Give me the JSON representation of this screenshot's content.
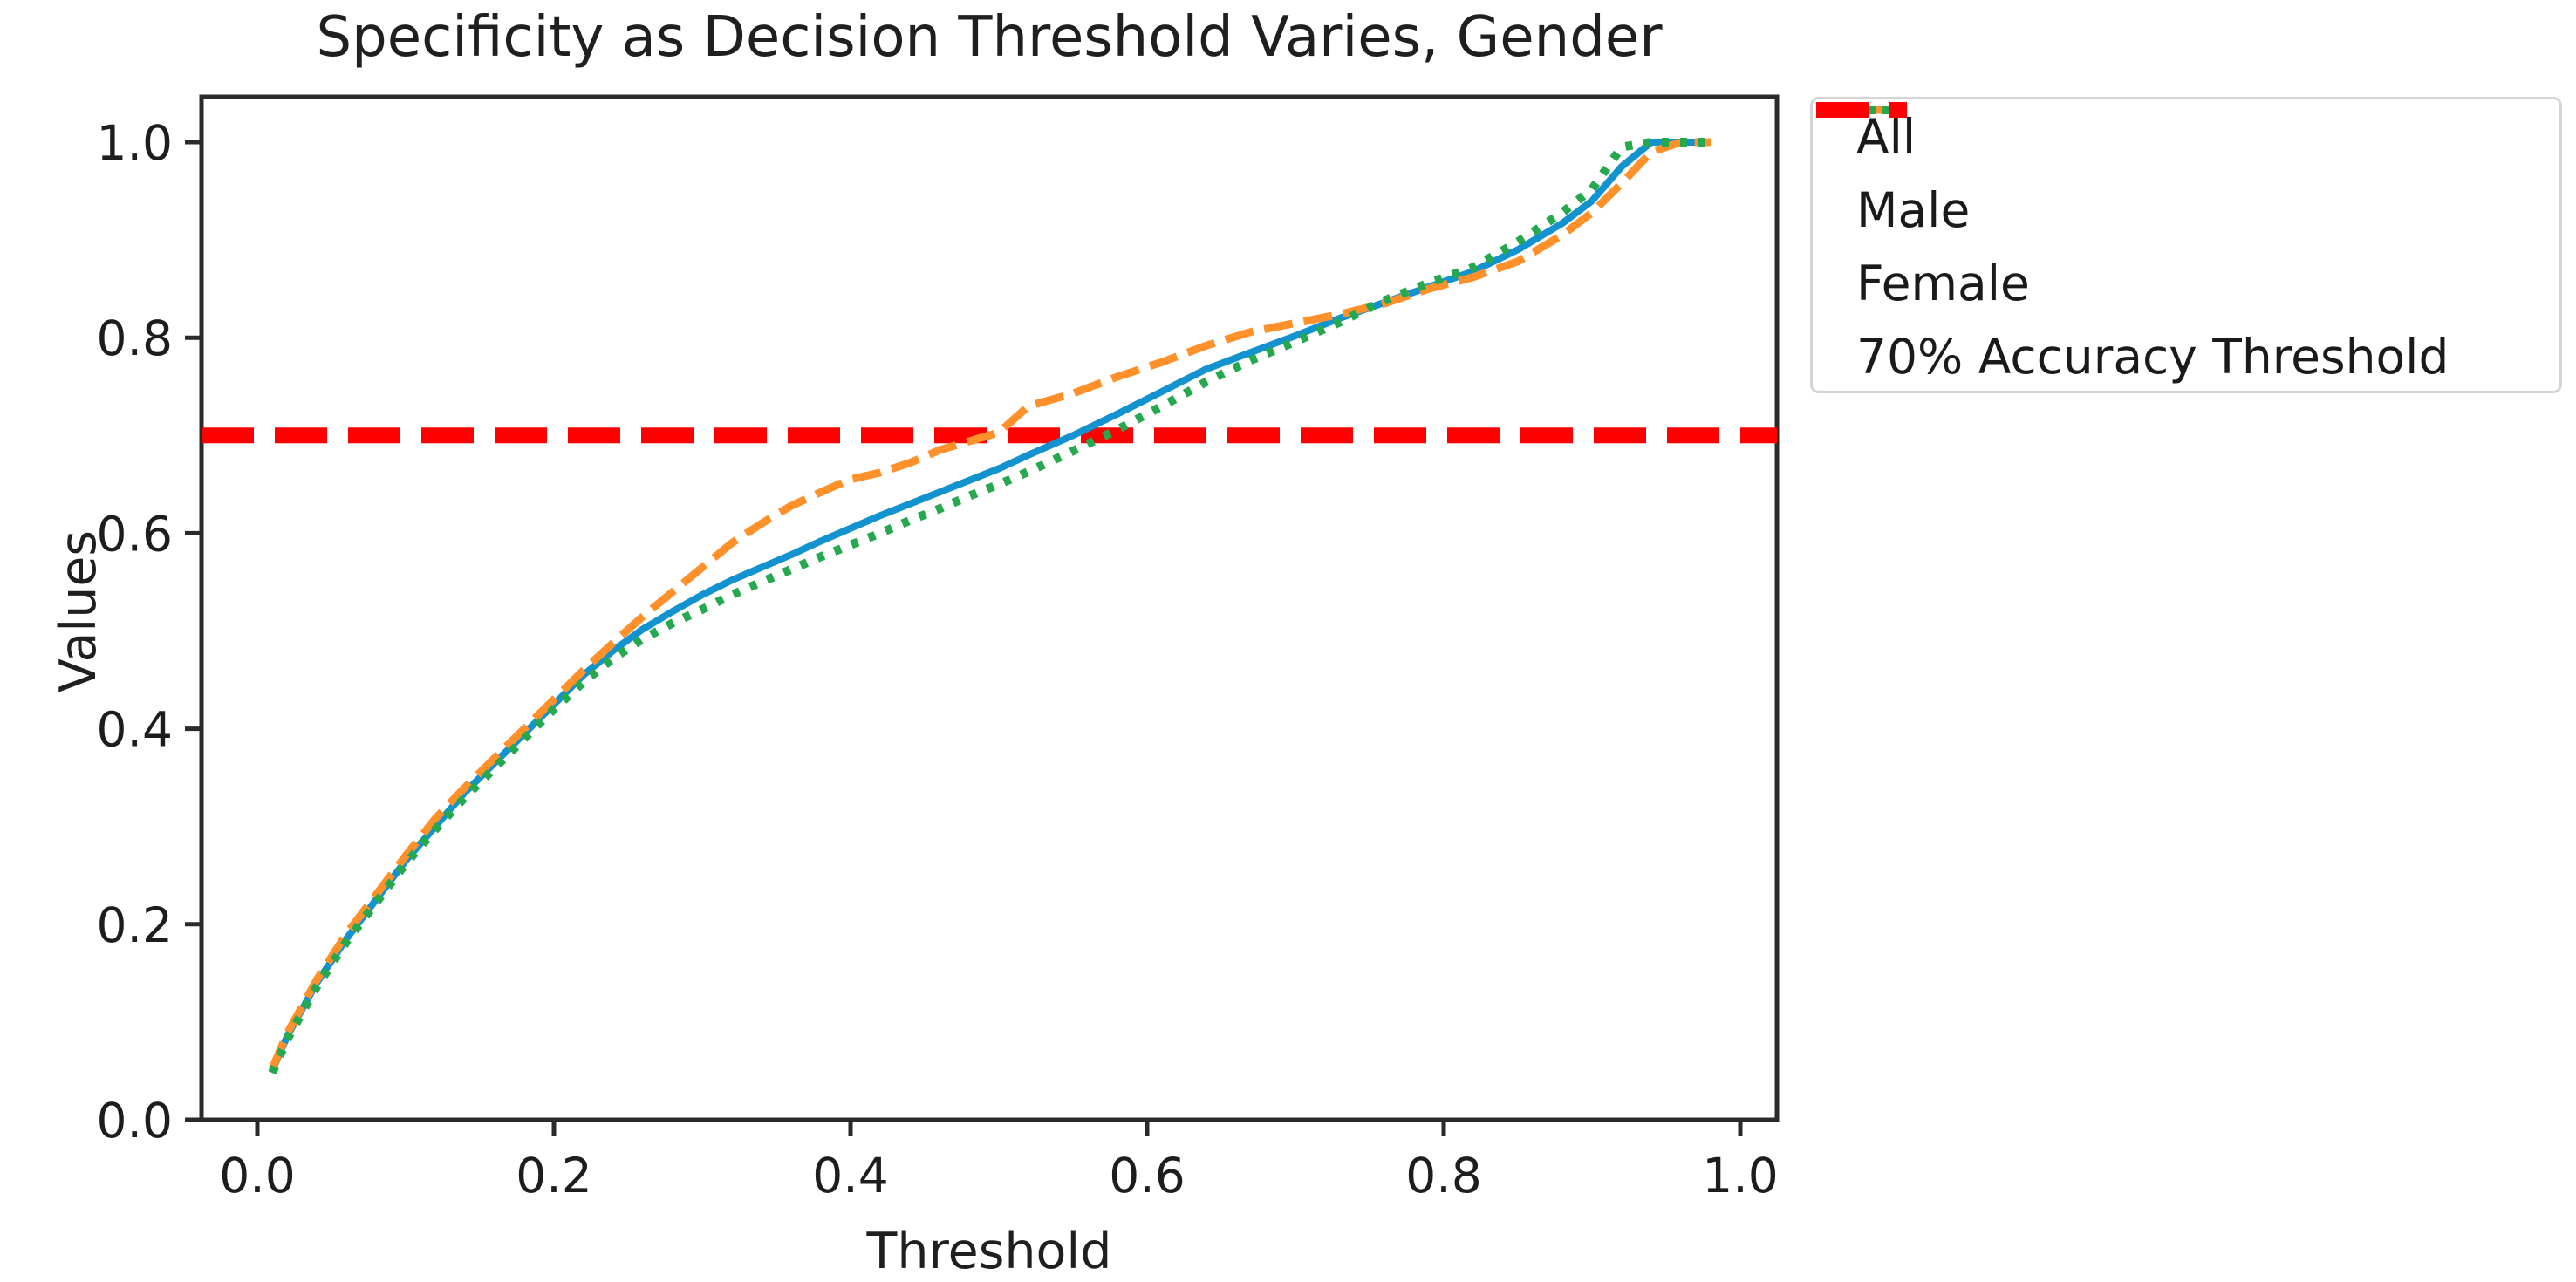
{
  "title": "Specificity as Decision Threshold Varies, Gender",
  "axes": {
    "xlabel": "Threshold",
    "ylabel": "Values"
  },
  "colors": {
    "all_line": "#1293cf",
    "male_line": "#ff902a",
    "female_line": "#26a84e",
    "threshold_line": "#fe0000",
    "spine": "#2a2a2a",
    "tick_text": "#1d1d1d",
    "legend_border": "#d4d4d4",
    "background": "#ffffff"
  },
  "legend": {
    "items": [
      {
        "label": "All",
        "color": "#1293cf",
        "style": "solid",
        "width": 8
      },
      {
        "label": "Male",
        "color": "#ff902a",
        "style": "dashed",
        "width": 9
      },
      {
        "label": "Female",
        "color": "#26a84e",
        "style": "dotted",
        "width": 10
      },
      {
        "label": "70% Accuracy Threshold",
        "color": "#fe0000",
        "style": "dashed-thick",
        "width": 18
      }
    ]
  },
  "chart_data": {
    "type": "line",
    "title": "Specificity as Decision Threshold Varies, Gender",
    "xlabel": "Threshold",
    "ylabel": "Values",
    "xlim": [
      -0.038,
      1.025
    ],
    "ylim": [
      0.0,
      1.048
    ],
    "x_ticks": [
      0.0,
      0.2,
      0.4,
      0.6,
      0.8,
      1.0
    ],
    "y_ticks": [
      0.0,
      0.2,
      0.4,
      0.6,
      0.8,
      1.0
    ],
    "grid": false,
    "legend_position": "upper right, outside axes",
    "x": [
      0.01,
      0.02,
      0.04,
      0.06,
      0.08,
      0.1,
      0.12,
      0.14,
      0.16,
      0.18,
      0.2,
      0.22,
      0.24,
      0.26,
      0.28,
      0.3,
      0.32,
      0.34,
      0.36,
      0.38,
      0.4,
      0.42,
      0.44,
      0.46,
      0.48,
      0.5,
      0.52,
      0.55,
      0.58,
      0.61,
      0.64,
      0.67,
      0.7,
      0.73,
      0.76,
      0.79,
      0.82,
      0.85,
      0.88,
      0.9,
      0.92,
      0.94,
      0.96,
      0.98
    ],
    "series": [
      {
        "name": "All",
        "style": "solid",
        "color": "#1293cf",
        "width": 8,
        "values": [
          0.05,
          0.085,
          0.14,
          0.185,
          0.225,
          0.265,
          0.3,
          0.335,
          0.365,
          0.395,
          0.425,
          0.455,
          0.48,
          0.502,
          0.52,
          0.537,
          0.552,
          0.565,
          0.578,
          0.592,
          0.605,
          0.618,
          0.63,
          0.642,
          0.654,
          0.666,
          0.68,
          0.7,
          0.722,
          0.745,
          0.768,
          0.785,
          0.802,
          0.82,
          0.836,
          0.852,
          0.868,
          0.89,
          0.917,
          0.94,
          0.975,
          1.0,
          1.0,
          1.0
        ]
      },
      {
        "name": "Male",
        "style": "dashed",
        "color": "#ff902a",
        "width": 9,
        "values": [
          0.052,
          0.088,
          0.143,
          0.19,
          0.23,
          0.27,
          0.308,
          0.34,
          0.37,
          0.4,
          0.43,
          0.46,
          0.488,
          0.515,
          0.54,
          0.565,
          0.59,
          0.61,
          0.628,
          0.642,
          0.655,
          0.662,
          0.672,
          0.685,
          0.694,
          0.703,
          0.73,
          0.743,
          0.76,
          0.775,
          0.792,
          0.806,
          0.815,
          0.824,
          0.835,
          0.85,
          0.862,
          0.878,
          0.905,
          0.928,
          0.958,
          0.99,
          1.0,
          1.0
        ]
      },
      {
        "name": "Female",
        "style": "dotted",
        "color": "#26a84e",
        "width": 10,
        "values": [
          0.048,
          0.082,
          0.136,
          0.182,
          0.222,
          0.262,
          0.297,
          0.33,
          0.36,
          0.39,
          0.42,
          0.448,
          0.472,
          0.492,
          0.508,
          0.522,
          0.537,
          0.55,
          0.563,
          0.576,
          0.588,
          0.6,
          0.613,
          0.625,
          0.638,
          0.65,
          0.663,
          0.684,
          0.706,
          0.73,
          0.755,
          0.777,
          0.796,
          0.816,
          0.838,
          0.856,
          0.872,
          0.898,
          0.928,
          0.952,
          0.995,
          1.0,
          1.0,
          1.0
        ]
      }
    ],
    "horizontal_line": {
      "name": "70% Accuracy Threshold",
      "style": "dashed-thick",
      "color": "#fe0000",
      "width": 18,
      "value": 0.7
    }
  }
}
